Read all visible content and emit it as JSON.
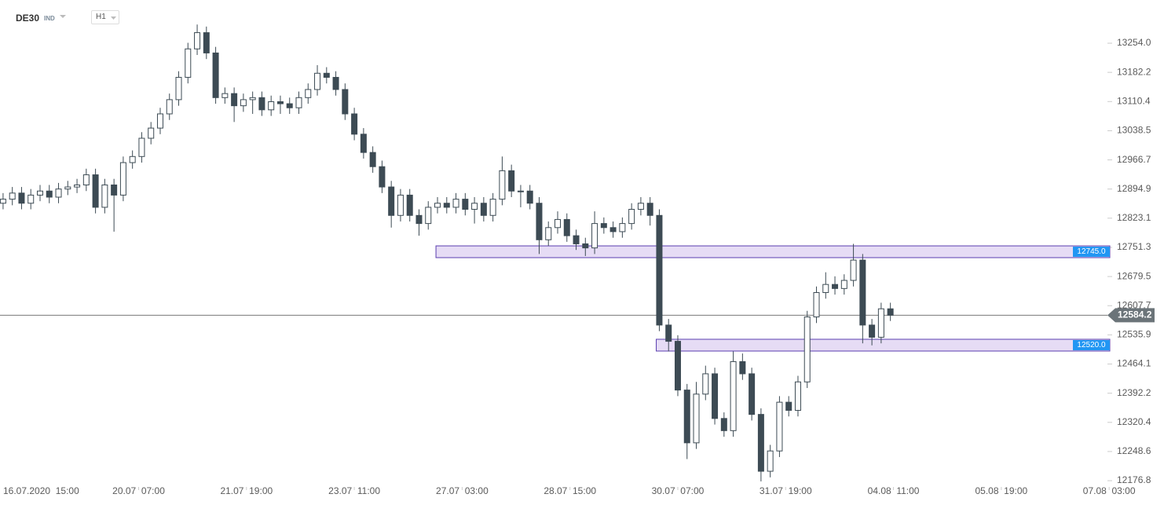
{
  "chart_data": {
    "type": "candlestick",
    "symbol": "DE30",
    "instrument_type": "IND",
    "timeframe": "H1",
    "up_color": "#ffffff",
    "down_color": "#3d4b54",
    "edge_color": "#3d4b54",
    "zone_color": "#e6dcf5",
    "zone_edge": "#5b3fb0",
    "zone_label_color": "#2196f3",
    "x": [
      1,
      4,
      7,
      10,
      13,
      16,
      19,
      22,
      25,
      28,
      31,
      34,
      37,
      40,
      43,
      46,
      49,
      52,
      55,
      58,
      61,
      64,
      67,
      70,
      73,
      76,
      79,
      82,
      85,
      88,
      91,
      94,
      97,
      100,
      103,
      106,
      109,
      112,
      115,
      118,
      121,
      124,
      127,
      130,
      133,
      136,
      139,
      142,
      145,
      148,
      151,
      154,
      157,
      160,
      163,
      166,
      169,
      172,
      175,
      178,
      181,
      184,
      187,
      190,
      193,
      196,
      199,
      202,
      205,
      208,
      211,
      214,
      217,
      220,
      223,
      226,
      229,
      232,
      235,
      238,
      241,
      244,
      247,
      250,
      253,
      256,
      259,
      262,
      265,
      268,
      271,
      274,
      277,
      280,
      283,
      286,
      289
    ],
    "open": [
      12860,
      12870,
      12885,
      12860,
      12880,
      12890,
      12875,
      12895,
      12900,
      12905,
      12930,
      12850,
      12905,
      12880,
      12960,
      12975,
      13020,
      13045,
      13080,
      13115,
      13170,
      13240,
      13280,
      13230,
      13120,
      13130,
      13100,
      13115,
      13120,
      13090,
      13110,
      13105,
      13095,
      13120,
      13140,
      13180,
      13170,
      13140,
      13080,
      13030,
      12985,
      12950,
      12900,
      12830,
      12880,
      12830,
      12810,
      12850,
      12860,
      12850,
      12870,
      12845,
      12860,
      12830,
      12870,
      12940,
      12890,
      12890,
      12860,
      12770,
      12800,
      12820,
      12780,
      12760,
      12750,
      12810,
      12800,
      12790,
      12810,
      12845,
      12860,
      12830,
      12560,
      12520,
      12400,
      12270,
      12390,
      12440,
      12330,
      12300,
      12470,
      12440,
      12340,
      12200,
      12250,
      12370,
      12350,
      12420,
      12580,
      12640,
      12660,
      12650,
      12670,
      12720,
      12560,
      12530,
      12600
    ],
    "high": [
      12885,
      12900,
      12900,
      12895,
      12905,
      12905,
      12910,
      12915,
      12920,
      12945,
      12945,
      12920,
      12920,
      12975,
      12990,
      13035,
      13060,
      13095,
      13130,
      13185,
      13255,
      13300,
      13295,
      13245,
      13145,
      13145,
      13130,
      13135,
      13135,
      13125,
      13125,
      13120,
      13135,
      13155,
      13200,
      13195,
      13185,
      13155,
      13095,
      13045,
      13000,
      12965,
      12915,
      12895,
      12895,
      12845,
      12865,
      12875,
      12875,
      12885,
      12885,
      12875,
      12875,
      12885,
      12975,
      12955,
      12905,
      12905,
      12875,
      12815,
      12840,
      12835,
      12795,
      12775,
      12840,
      12825,
      12815,
      12825,
      12860,
      12875,
      12875,
      12845,
      12575,
      12535,
      12415,
      12420,
      12460,
      12455,
      12345,
      12495,
      12490,
      12455,
      12355,
      12265,
      12385,
      12385,
      12435,
      12595,
      12655,
      12690,
      12680,
      12685,
      12760,
      12735,
      12575,
      12615,
      12615
    ],
    "low": [
      12845,
      12855,
      12845,
      12845,
      12865,
      12860,
      12860,
      12880,
      12885,
      12890,
      12835,
      12835,
      12790,
      12865,
      12945,
      12960,
      13005,
      13030,
      13065,
      13100,
      13155,
      13225,
      13215,
      13105,
      13105,
      13060,
      13085,
      13080,
      13075,
      13075,
      13080,
      13080,
      13080,
      13105,
      13125,
      13155,
      13125,
      13065,
      13015,
      12970,
      12935,
      12885,
      12800,
      12815,
      12815,
      12780,
      12795,
      12835,
      12835,
      12835,
      12830,
      12810,
      12815,
      12815,
      12855,
      12875,
      12850,
      12845,
      12735,
      12755,
      12785,
      12765,
      12745,
      12730,
      12735,
      12785,
      12775,
      12775,
      12795,
      12830,
      12805,
      12545,
      12495,
      12385,
      12230,
      12255,
      12375,
      12315,
      12285,
      12285,
      12425,
      12325,
      12175,
      12185,
      12235,
      12335,
      12335,
      12405,
      12565,
      12625,
      12635,
      12635,
      12655,
      12515,
      12510,
      12515,
      12570
    ],
    "close": [
      12870,
      12885,
      12860,
      12880,
      12890,
      12875,
      12895,
      12900,
      12905,
      12930,
      12850,
      12905,
      12880,
      12960,
      12975,
      13020,
      13045,
      13080,
      13115,
      13170,
      13240,
      13280,
      13230,
      13120,
      13130,
      13100,
      13115,
      13120,
      13090,
      13110,
      13105,
      13095,
      13120,
      13140,
      13180,
      13170,
      13140,
      13080,
      13030,
      12985,
      12950,
      12900,
      12830,
      12880,
      12830,
      12810,
      12850,
      12860,
      12850,
      12870,
      12845,
      12860,
      12830,
      12870,
      12940,
      12890,
      12890,
      12860,
      12770,
      12800,
      12820,
      12780,
      12760,
      12750,
      12810,
      12800,
      12790,
      12810,
      12845,
      12860,
      12830,
      12560,
      12520,
      12400,
      12270,
      12390,
      12440,
      12330,
      12300,
      12470,
      12440,
      12340,
      12200,
      12250,
      12370,
      12350,
      12420,
      12580,
      12640,
      12660,
      12650,
      12670,
      12720,
      12560,
      12530,
      12600,
      12584.2
    ],
    "xlim": [
      0,
      362
    ],
    "xticks": [
      {
        "value": 10,
        "label": "16.07.2020  15:00"
      },
      {
        "value": 45,
        "label": "20.07  07:00"
      },
      {
        "value": 80,
        "label": "21.07  19:00"
      },
      {
        "value": 115,
        "label": "23.07  11:00"
      },
      {
        "value": 150,
        "label": "27.07  03:00"
      },
      {
        "value": 185,
        "label": "28.07  15:00"
      },
      {
        "value": 220,
        "label": "30.07  07:00"
      },
      {
        "value": 255,
        "label": "31.07  19:00"
      },
      {
        "value": 290,
        "label": "04.08  11:00"
      },
      {
        "value": 325,
        "label": "05.08  19:00"
      },
      {
        "value": 360,
        "label": "07.08  03:00"
      }
    ],
    "ylim": [
      12161.4,
      13360.4
    ],
    "yticks": [
      {
        "value": 13254,
        "label": "13254.0"
      },
      13182.2,
      13110.4,
      13038.5,
      12966.7,
      12894.9,
      12823.1,
      12751.3,
      12679.5,
      12607.7,
      12535.9,
      12464.1,
      12392.2,
      12320.4,
      12248.6,
      12176.8
    ],
    "last_price": 12584.2,
    "zones": [
      {
        "from": 12726,
        "to": 12755,
        "x_start": 141.5,
        "label": "12745.0"
      },
      {
        "from": 12496,
        "to": 12525,
        "x_start": 213,
        "label": "12520.0"
      }
    ]
  }
}
